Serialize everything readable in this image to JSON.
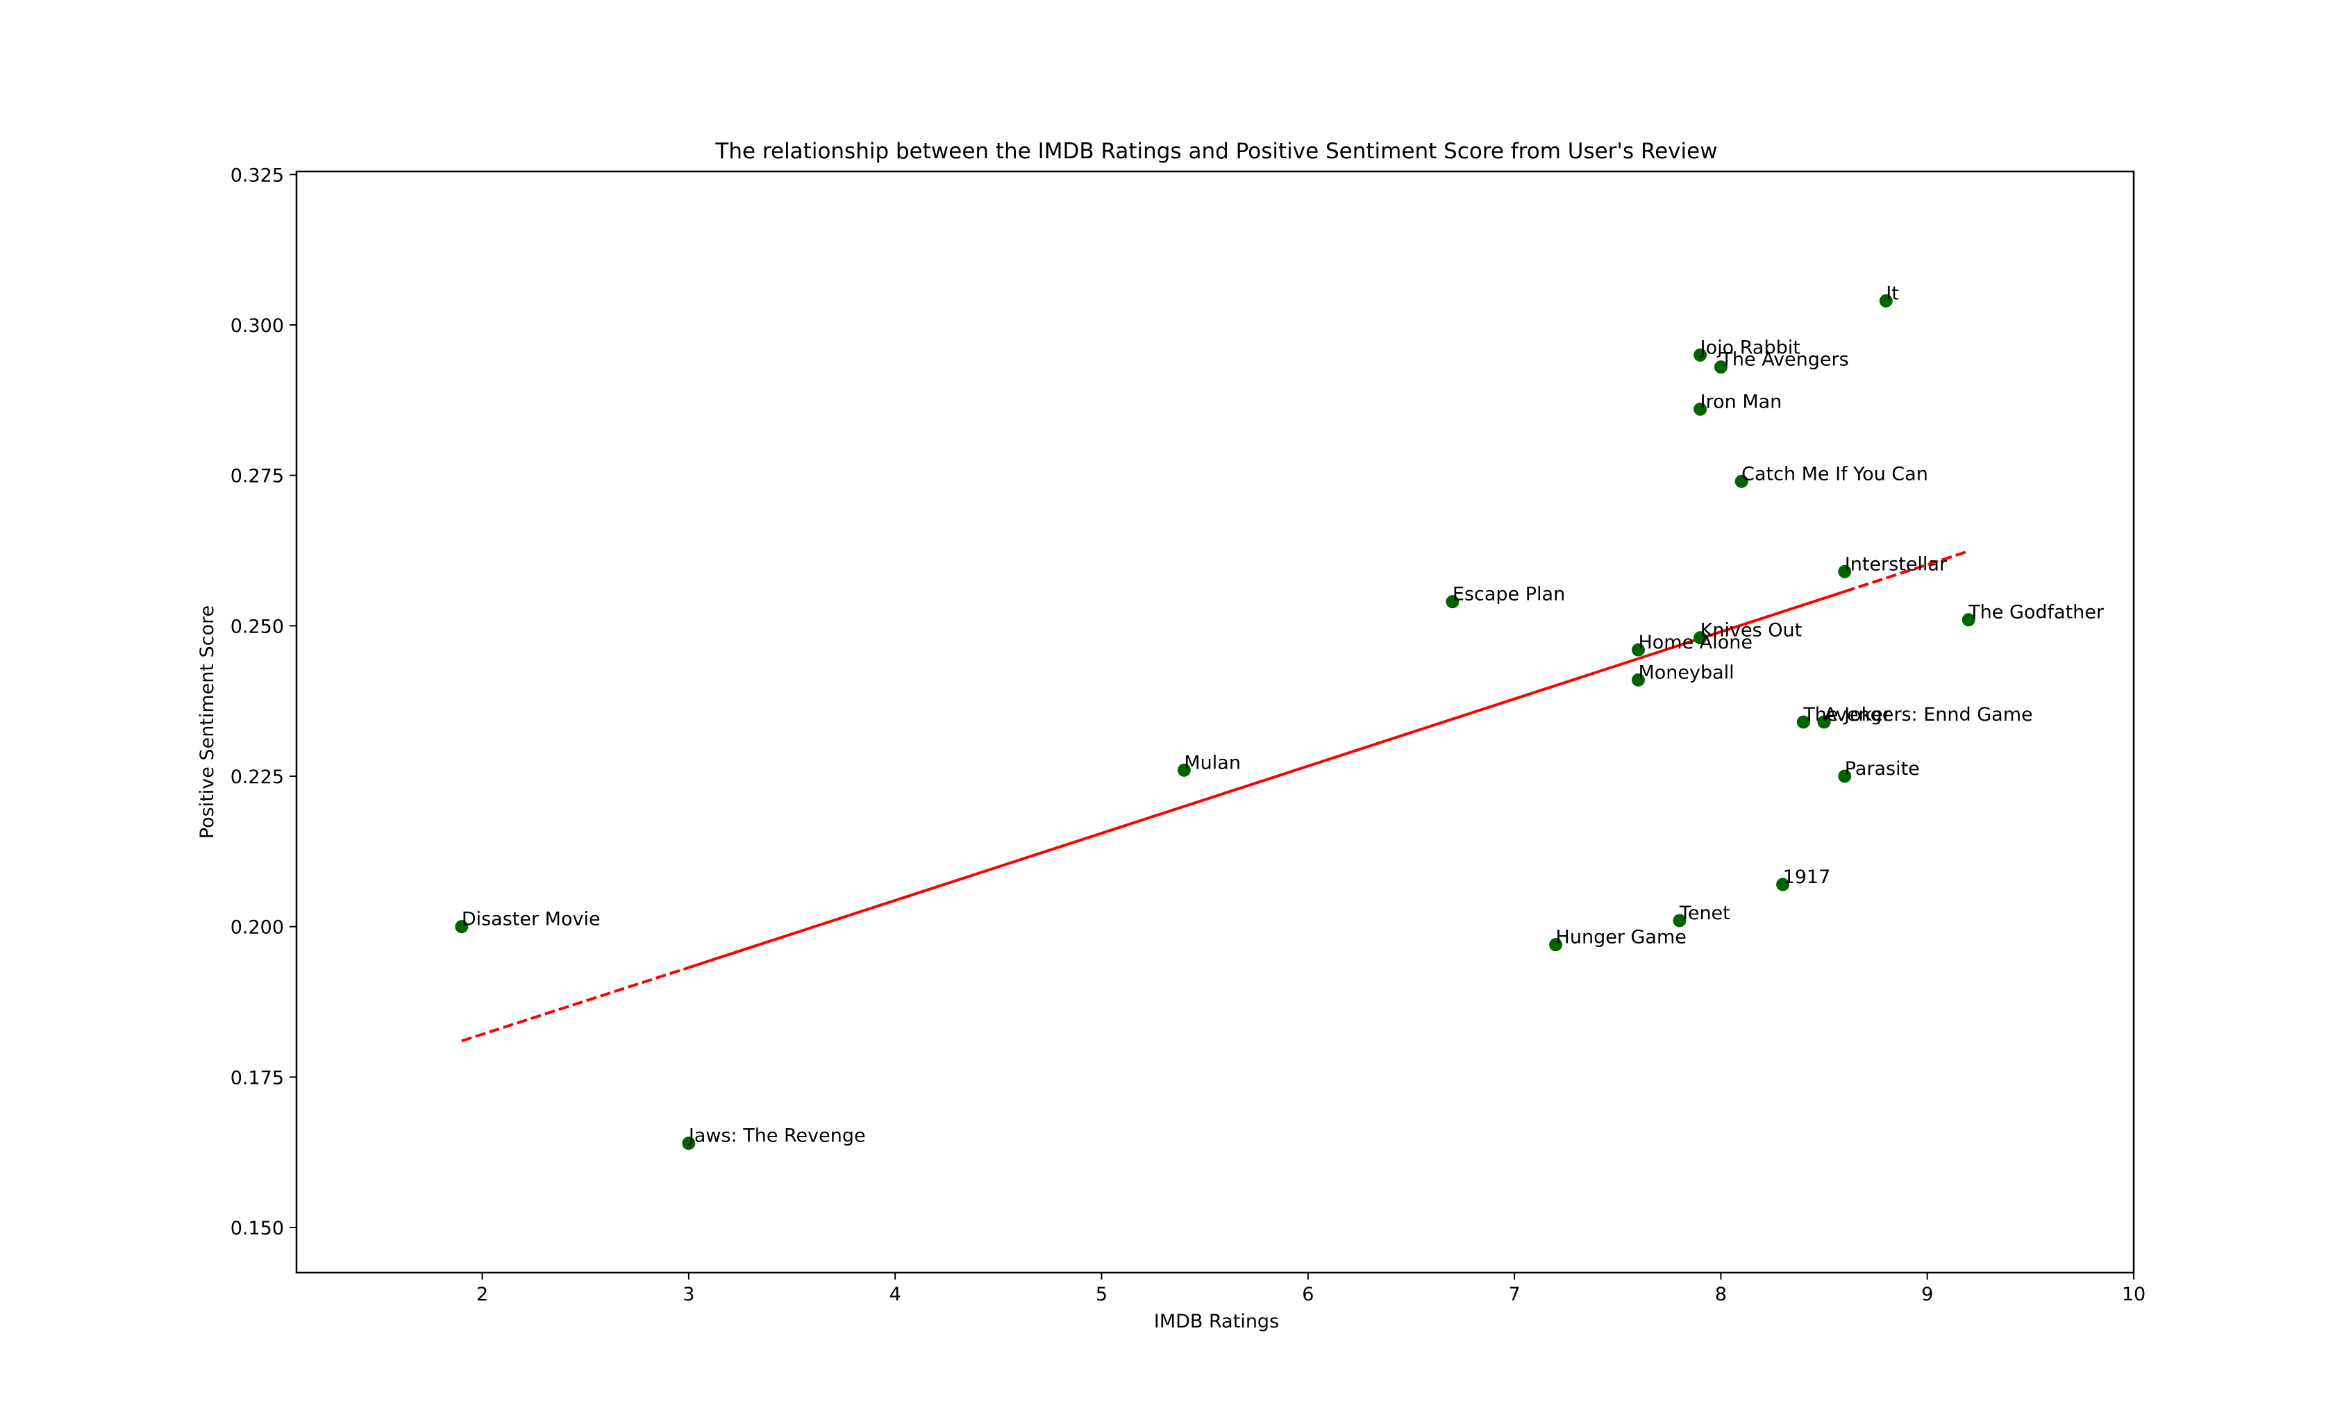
{
  "chart_data": {
    "type": "scatter",
    "title": "The relationship between the IMDB Ratings and Positive Sentiment Score from User's Review",
    "xlabel": "IMDB Ratings",
    "ylabel": "Positive Sentiment Score",
    "xlim": [
      1.1,
      10.0
    ],
    "ylim": [
      0.1425,
      0.3255
    ],
    "xticks": [
      2,
      3,
      4,
      5,
      6,
      7,
      8,
      9,
      10
    ],
    "xtick_labels": [
      "2",
      "3",
      "4",
      "5",
      "6",
      "7",
      "8",
      "9",
      "10"
    ],
    "yticks": [
      0.15,
      0.175,
      0.2,
      0.225,
      0.25,
      0.275,
      0.3,
      0.325
    ],
    "ytick_labels": [
      "0.150",
      "0.175",
      "0.200",
      "0.225",
      "0.250",
      "0.275",
      "0.300",
      "0.325"
    ],
    "grid": false,
    "point_color": "#006400",
    "trend_color": "#ff0000",
    "points": [
      {
        "label": "It",
        "x": 8.8,
        "y": 0.304
      },
      {
        "label": "Jojo Rabbit",
        "x": 7.9,
        "y": 0.295
      },
      {
        "label": "The Avengers",
        "x": 8.0,
        "y": 0.293
      },
      {
        "label": "Iron Man",
        "x": 7.9,
        "y": 0.286
      },
      {
        "label": "Catch Me If You Can",
        "x": 8.1,
        "y": 0.274
      },
      {
        "label": "Interstellar",
        "x": 8.6,
        "y": 0.259
      },
      {
        "label": "Escape Plan",
        "x": 6.7,
        "y": 0.254
      },
      {
        "label": "The Godfather",
        "x": 9.2,
        "y": 0.251
      },
      {
        "label": "Knives Out",
        "x": 7.9,
        "y": 0.248
      },
      {
        "label": "Home Alone",
        "x": 7.6,
        "y": 0.246
      },
      {
        "label": "Moneyball",
        "x": 7.6,
        "y": 0.241
      },
      {
        "label": "The Joker",
        "x": 8.4,
        "y": 0.234
      },
      {
        "label": "Avengers: Ennd Game",
        "x": 8.5,
        "y": 0.234
      },
      {
        "label": "Mulan",
        "x": 5.4,
        "y": 0.226
      },
      {
        "label": "Parasite",
        "x": 8.6,
        "y": 0.225
      },
      {
        "label": "1917",
        "x": 8.3,
        "y": 0.207
      },
      {
        "label": "Tenet",
        "x": 7.8,
        "y": 0.201
      },
      {
        "label": "Disaster Movie",
        "x": 1.9,
        "y": 0.2
      },
      {
        "label": "Hunger Game",
        "x": 7.2,
        "y": 0.197
      },
      {
        "label": "Jaws: The Revenge",
        "x": 3.0,
        "y": 0.164
      }
    ],
    "trend_line": {
      "dashed_from": [
        1.9,
        0.181
      ],
      "solid_from": [
        3.0,
        0.1932
      ],
      "solid_to": [
        8.6,
        0.2557
      ],
      "dashed_to": [
        9.2,
        0.2624
      ]
    }
  }
}
